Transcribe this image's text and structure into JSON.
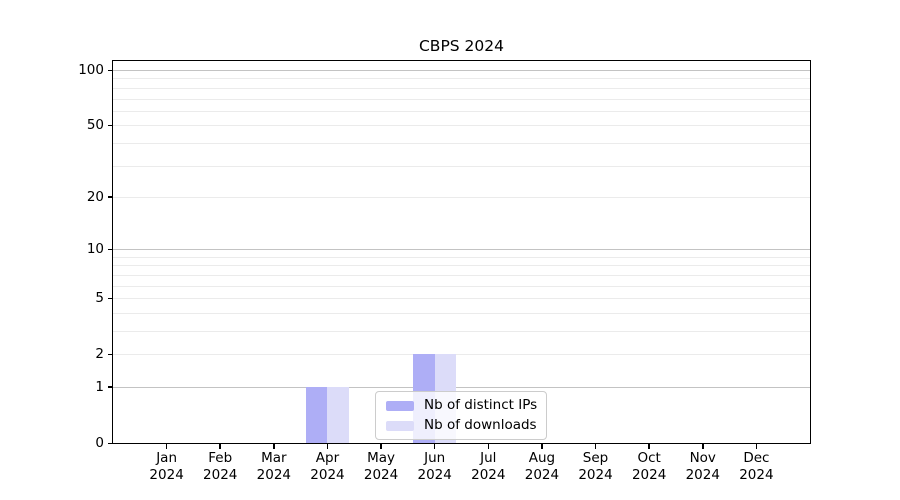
{
  "figure": {
    "title": "CBPS 2024"
  },
  "chart_data": {
    "type": "bar",
    "title": "CBPS 2024",
    "categories": [
      "Jan 2024",
      "Feb 2024",
      "Mar 2024",
      "Apr 2024",
      "May 2024",
      "Jun 2024",
      "Jul 2024",
      "Aug 2024",
      "Sep 2024",
      "Oct 2024",
      "Nov 2024",
      "Dec 2024"
    ],
    "series": [
      {
        "name": "Nb of distinct IPs",
        "color": "#aeaef6",
        "values": [
          0,
          0,
          0,
          1,
          0,
          2,
          0,
          0,
          0,
          0,
          0,
          0
        ]
      },
      {
        "name": "Nb of downloads",
        "color": "#dcdcf9",
        "values": [
          0,
          0,
          0,
          1,
          0,
          2,
          0,
          0,
          0,
          0,
          0,
          0
        ]
      }
    ],
    "xlabel": "",
    "ylabel": "",
    "yscale": "log1p",
    "ylim": [
      0,
      112
    ],
    "yticks": [
      0,
      1,
      2,
      5,
      10,
      20,
      50,
      100
    ],
    "ytick_labels": [
      "0",
      "1",
      "2",
      "5",
      "10",
      "20",
      "50",
      "100"
    ],
    "minor_gridlines": [
      2,
      3,
      4,
      5,
      6,
      7,
      8,
      9,
      20,
      30,
      40,
      50,
      60,
      70,
      80,
      90
    ],
    "major_gridlines": [
      1,
      10,
      100
    ],
    "grid": "on",
    "legend_position": "lower center",
    "bar_group_width_fraction": 0.8
  },
  "legend": {
    "items": [
      {
        "label": "Nb of distinct IPs",
        "swatch_color": "#aeaef6"
      },
      {
        "label": "Nb of downloads",
        "swatch_color": "#dcdcf9"
      }
    ]
  },
  "colors": {
    "background": "#ffffff",
    "spine": "#000000",
    "grid_major": "#c3c3c3",
    "grid_minor": "#ebebeb",
    "bar_distinct_ips": "#aeaef6",
    "bar_downloads": "#dcdcf9",
    "legend_border": "#cccccc",
    "text": "#000000"
  }
}
